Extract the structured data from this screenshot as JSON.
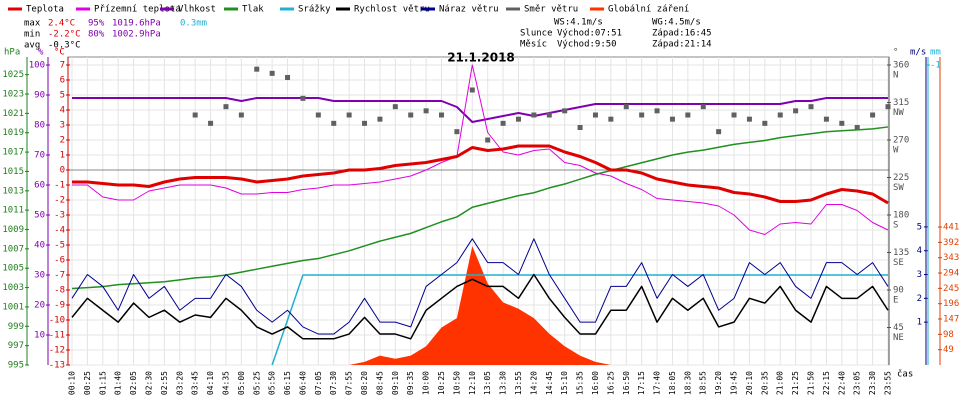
{
  "chart_data": {
    "type": "line",
    "title": "21.1.2018",
    "x_label": "čas",
    "grid": true,
    "categories": [
      "00:10",
      "00:25",
      "01:15",
      "01:40",
      "02:05",
      "02:30",
      "02:55",
      "03:20",
      "03:45",
      "04:10",
      "04:35",
      "05:00",
      "05:25",
      "05:50",
      "06:15",
      "06:40",
      "07:05",
      "07:30",
      "07:55",
      "08:20",
      "08:45",
      "09:10",
      "09:35",
      "10:00",
      "10:25",
      "10:50",
      "12:10",
      "13:05",
      "13:30",
      "13:55",
      "14:20",
      "14:45",
      "15:10",
      "15:35",
      "16:00",
      "16:25",
      "16:50",
      "17:15",
      "17:40",
      "18:05",
      "18:30",
      "18:55",
      "19:20",
      "19:45",
      "20:10",
      "20:35",
      "21:00",
      "21:25",
      "21:50",
      "22:15",
      "22:40",
      "23:05",
      "23:30",
      "23:55"
    ],
    "axes": {
      "press": {
        "title": "hPa",
        "color": "#208020",
        "ylim": [
          995,
          1026
        ],
        "yticks": [
          995,
          997,
          999,
          1001,
          1003,
          1005,
          1007,
          1009,
          1011,
          1013,
          1015,
          1017,
          1019,
          1021,
          1023,
          1025
        ]
      },
      "hum": {
        "title": "%",
        "color": "#8000b0",
        "ylim": [
          0,
          100
        ],
        "yticks": [
          10,
          20,
          30,
          40,
          50,
          60,
          70,
          80,
          90,
          100
        ]
      },
      "temp": {
        "title": "°C",
        "color": "#d00000",
        "ylim": [
          -13,
          7
        ],
        "yticks": [
          -13,
          -12,
          -11,
          -10,
          -9,
          -8,
          -7,
          -6,
          -5,
          -4,
          -3,
          -2,
          -1,
          0,
          1,
          2,
          3,
          4,
          5,
          6,
          7
        ]
      },
      "dir": {
        "title": "°",
        "color": "#505050",
        "ylim": [
          0,
          360
        ],
        "yticks": [
          {
            "value": 45,
            "label": "45",
            "dir": "NE"
          },
          {
            "value": 90,
            "label": "90",
            "dir": "E"
          },
          {
            "value": 135,
            "label": "135",
            "dir": "SE"
          },
          {
            "value": 180,
            "label": "180",
            "dir": "S"
          },
          {
            "value": 225,
            "label": "225",
            "dir": "SW"
          },
          {
            "value": 270,
            "label": "270",
            "dir": "W"
          },
          {
            "value": 315,
            "label": "315",
            "dir": "NW"
          },
          {
            "value": 360,
            "label": "360",
            "dir": "N"
          }
        ]
      },
      "wind": {
        "title": "m/s",
        "color": "#000080",
        "ylim": [
          -0.8,
          11.8
        ],
        "yticks": [
          1,
          2,
          3,
          4,
          5
        ]
      },
      "rain": {
        "title": "mm",
        "color": "#20b0d0",
        "ylim": [
          0,
          1
        ],
        "yticks": [
          {
            "value": 1,
            "label": "-1"
          }
        ]
      },
      "rad": {
        "color": "#e04000",
        "ylim": [
          0,
          959
        ],
        "yticks": [
          49,
          98,
          147,
          196,
          245,
          294,
          343,
          392,
          441
        ]
      }
    },
    "series": [
      {
        "name": "Teplota",
        "color": "#e00000",
        "axis": "temp",
        "style": "line",
        "values": [
          -0.8,
          -0.8,
          -0.9,
          -1.0,
          -1.0,
          -1.1,
          -0.8,
          -0.6,
          -0.5,
          -0.5,
          -0.5,
          -0.6,
          -0.8,
          -0.7,
          -0.6,
          -0.4,
          -0.3,
          -0.2,
          0.0,
          0.0,
          0.1,
          0.3,
          0.4,
          0.5,
          0.7,
          0.9,
          1.5,
          1.3,
          1.4,
          1.6,
          1.6,
          1.6,
          1.2,
          0.9,
          0.5,
          0.0,
          0.0,
          -0.2,
          -0.6,
          -0.8,
          -1.0,
          -1.1,
          -1.2,
          -1.5,
          -1.6,
          -1.8,
          -2.1,
          -2.1,
          -2.0,
          -1.6,
          -1.3,
          -1.4,
          -1.6,
          -2.2
        ]
      },
      {
        "name": "Přízemní teplota",
        "color": "#e000e0",
        "axis": "temp",
        "style": "line",
        "values": [
          -1.0,
          -1.0,
          -1.8,
          -2.0,
          -2.0,
          -1.4,
          -1.2,
          -1.0,
          -1.0,
          -1.0,
          -1.2,
          -1.6,
          -1.6,
          -1.5,
          -1.5,
          -1.3,
          -1.2,
          -1.0,
          -1.0,
          -0.9,
          -0.8,
          -0.6,
          -0.4,
          0.0,
          0.5,
          0.9,
          7.0,
          2.5,
          1.2,
          1.0,
          1.3,
          1.4,
          0.5,
          0.3,
          -0.2,
          -0.4,
          -0.9,
          -1.3,
          -1.9,
          -2.0,
          -2.1,
          -2.2,
          -2.4,
          -3.0,
          -4.0,
          -4.3,
          -3.6,
          -3.5,
          -3.6,
          -2.3,
          -2.3,
          -2.7,
          -3.5,
          -4.0
        ]
      },
      {
        "name": "Vlhkost",
        "color": "#8000b0",
        "axis": "hum",
        "style": "line",
        "values": [
          89,
          89,
          89,
          89,
          89,
          89,
          89,
          89,
          89,
          89,
          89,
          88,
          89,
          89,
          89,
          89,
          89,
          88,
          88,
          88,
          88,
          88,
          88,
          88,
          88,
          86,
          81,
          82,
          83,
          84,
          83,
          84,
          85,
          86,
          87,
          87,
          87,
          87,
          87,
          87,
          87,
          87,
          87,
          87,
          87,
          87,
          87,
          88,
          88,
          89,
          89,
          89,
          89,
          89
        ]
      },
      {
        "name": "Tlak",
        "color": "#209020",
        "axis": "press",
        "style": "line",
        "values": [
          1002.9,
          1003.0,
          1003.1,
          1003.3,
          1003.4,
          1003.5,
          1003.6,
          1003.8,
          1004.0,
          1004.1,
          1004.3,
          1004.6,
          1004.9,
          1005.2,
          1005.5,
          1005.8,
          1006.0,
          1006.4,
          1006.8,
          1007.3,
          1007.8,
          1008.2,
          1008.6,
          1009.2,
          1009.8,
          1010.3,
          1011.3,
          1011.7,
          1012.1,
          1012.5,
          1012.8,
          1013.3,
          1013.7,
          1014.2,
          1014.7,
          1015.1,
          1015.5,
          1015.9,
          1016.3,
          1016.7,
          1017.0,
          1017.2,
          1017.5,
          1017.8,
          1018.0,
          1018.2,
          1018.5,
          1018.7,
          1018.9,
          1019.1,
          1019.2,
          1019.3,
          1019.4,
          1019.6
        ]
      },
      {
        "name": "Srážky",
        "color": "#20b0d0",
        "axis": "rain",
        "style": "line",
        "values": [
          null,
          null,
          null,
          null,
          null,
          null,
          null,
          null,
          null,
          null,
          null,
          null,
          null,
          0.0,
          0.15,
          0.3,
          0.3,
          0.3,
          0.3,
          0.3,
          0.3,
          0.3,
          0.3,
          0.3,
          0.3,
          0.3,
          0.3,
          0.3,
          0.3,
          0.3,
          0.3,
          0.3,
          0.3,
          0.3,
          0.3,
          0.3,
          0.3,
          0.3,
          0.3,
          0.3,
          0.3,
          0.3,
          0.3,
          0.3,
          0.3,
          0.3,
          0.3,
          0.3,
          0.3,
          0.3,
          0.3,
          0.3,
          0.3,
          0.3
        ]
      },
      {
        "name": "Rychlost větru",
        "color": "#000000",
        "axis": "wind",
        "style": "line",
        "values": [
          1.2,
          2.0,
          1.5,
          1.0,
          1.8,
          1.2,
          1.5,
          1.0,
          1.3,
          1.2,
          2.0,
          1.5,
          0.8,
          0.5,
          0.8,
          0.3,
          0.3,
          0.3,
          0.5,
          1.2,
          0.5,
          0.5,
          0.3,
          1.5,
          2.0,
          2.5,
          2.8,
          2.5,
          2.5,
          2.0,
          3.0,
          2.0,
          1.2,
          0.5,
          0.5,
          1.5,
          1.5,
          2.5,
          1.0,
          2.0,
          1.5,
          2.0,
          0.8,
          1.0,
          2.0,
          1.8,
          2.5,
          1.5,
          1.0,
          2.5,
          2.0,
          2.0,
          2.5,
          1.5
        ]
      },
      {
        "name": "Náraz větru",
        "color": "#000090",
        "axis": "wind",
        "style": "line",
        "values": [
          2.0,
          3.0,
          2.5,
          1.5,
          3.0,
          2.0,
          2.5,
          1.5,
          2.0,
          2.0,
          3.0,
          2.5,
          1.5,
          1.0,
          1.5,
          0.8,
          0.5,
          0.5,
          1.0,
          2.0,
          1.0,
          1.0,
          0.8,
          2.5,
          3.0,
          3.5,
          4.5,
          3.5,
          3.5,
          3.0,
          4.5,
          3.0,
          2.0,
          1.0,
          1.0,
          2.5,
          2.5,
          3.5,
          2.0,
          3.0,
          2.5,
          3.0,
          1.5,
          2.0,
          3.5,
          3.0,
          3.5,
          2.5,
          2.0,
          3.5,
          3.5,
          3.0,
          3.5,
          2.5
        ]
      },
      {
        "name": "Směr větru",
        "color": "#606060",
        "axis": "dir",
        "style": "points",
        "values": [
          null,
          null,
          null,
          null,
          null,
          null,
          null,
          null,
          300,
          290,
          310,
          300,
          355,
          350,
          345,
          320,
          300,
          290,
          300,
          290,
          295,
          310,
          300,
          305,
          300,
          280,
          330,
          270,
          290,
          295,
          300,
          300,
          305,
          285,
          300,
          295,
          310,
          300,
          305,
          295,
          300,
          310,
          280,
          300,
          295,
          290,
          300,
          305,
          310,
          295,
          290,
          285,
          300,
          310
        ]
      },
      {
        "name": "Globální záření",
        "color": "#ff3300",
        "axis": "rad",
        "style": "area",
        "values": [
          0,
          0,
          0,
          0,
          0,
          0,
          0,
          0,
          0,
          0,
          0,
          0,
          0,
          0,
          0,
          0,
          0,
          0,
          0,
          10,
          30,
          20,
          30,
          60,
          120,
          150,
          380,
          260,
          200,
          180,
          150,
          100,
          60,
          30,
          10,
          0,
          0,
          0,
          0,
          0,
          0,
          0,
          0,
          0,
          0,
          0,
          0,
          0,
          0,
          0,
          0,
          0,
          0,
          0
        ]
      }
    ],
    "stats": {
      "max": {
        "label": "max",
        "temp": "2.4°C",
        "hum": "95%",
        "press": "1019.6hPa",
        "rain": "0.3mm"
      },
      "min": {
        "label": "min",
        "temp": "-2.2°C",
        "hum": "80%",
        "press": "1002.9hPa"
      },
      "avg": {
        "label": "avg",
        "temp": "-0.3°C"
      }
    },
    "astro": {
      "ws": "WS:4.1m/s",
      "wg": "WG:4.5m/s",
      "sun_label": "Slunce",
      "sun_rise": "Východ:07:51",
      "sun_set": "Západ:16:45",
      "moon_label": "Měsíc",
      "moon_rise": "Východ:9:50",
      "moon_set": "Západ:21:14"
    }
  }
}
